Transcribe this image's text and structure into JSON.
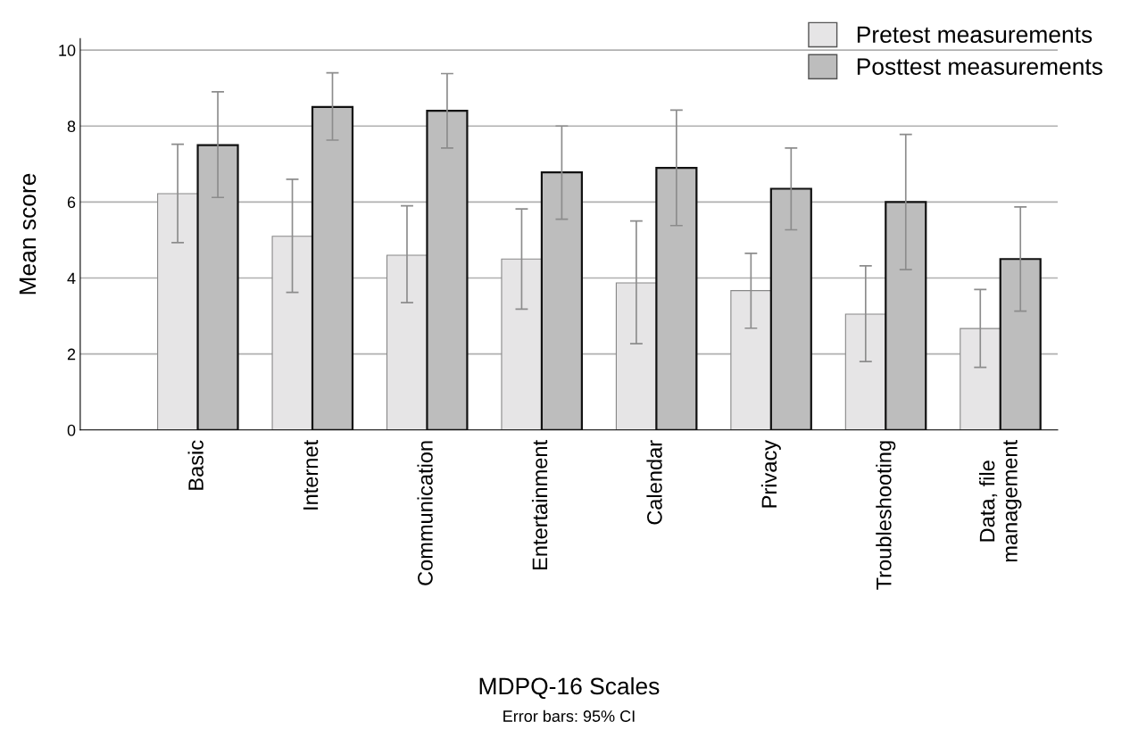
{
  "chart_data": {
    "type": "bar",
    "xlabel": "MDPQ-16 Scales",
    "ylabel": "Mean score",
    "categories": [
      "Basic",
      "Internet",
      "Communication",
      "Entertainment",
      "Calendar",
      "Privacy",
      "Troubleshooting",
      "Data, file\nmanagement"
    ],
    "series": [
      {
        "name": "Pretest measurements",
        "color": "#e6e5e6",
        "values": [
          6.22,
          5.1,
          4.6,
          4.5,
          3.87,
          3.67,
          3.05,
          2.67
        ],
        "errors": [
          [
            4.93,
            7.52
          ],
          [
            3.62,
            6.6
          ],
          [
            3.35,
            5.9
          ],
          [
            3.18,
            5.82
          ],
          [
            2.27,
            5.5
          ],
          [
            2.68,
            4.65
          ],
          [
            1.8,
            4.32
          ],
          [
            1.65,
            3.7
          ]
        ]
      },
      {
        "name": "Posttest measurements",
        "color": "#bdbdbd",
        "values": [
          7.5,
          8.5,
          8.4,
          6.78,
          6.9,
          6.35,
          6.0,
          4.5
        ],
        "errors": [
          [
            6.12,
            8.9
          ],
          [
            7.63,
            9.4
          ],
          [
            7.42,
            9.38
          ],
          [
            5.55,
            8.0
          ],
          [
            5.38,
            8.42
          ],
          [
            5.27,
            7.42
          ],
          [
            4.22,
            7.78
          ],
          [
            3.13,
            5.87
          ]
        ]
      }
    ],
    "ylim": [
      0,
      10.3
    ],
    "yticks": [
      0,
      2,
      4,
      6,
      8,
      10
    ],
    "grid": "y",
    "legend": "top right",
    "annotations": [
      "Error bars: 95% CI"
    ]
  }
}
